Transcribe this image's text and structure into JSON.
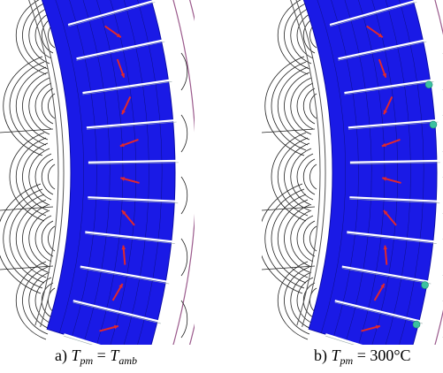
{
  "panels": [
    {
      "id": "a",
      "caption": {
        "prefix": "a)",
        "lhs_var": "T",
        "lhs_sub": "pm",
        "eq": "=",
        "rhs_var": "T",
        "rhs_sub": "amb",
        "rhs_text": ""
      },
      "hotspots": false
    },
    {
      "id": "b",
      "caption": {
        "prefix": "b)",
        "lhs_var": "T",
        "lhs_sub": "pm",
        "eq": "=",
        "rhs_var": "",
        "rhs_sub": "",
        "rhs_text": "300°C"
      },
      "hotspots": true
    }
  ],
  "colors": {
    "magnet": "#1a1ae6",
    "magnet_dark": "#0d0da8",
    "arrow": "#e0282e",
    "flux_line": "#222222",
    "boundary": "#9b5a8c",
    "slot": "#ffffff",
    "hotspot": "#3cc0a0"
  },
  "magnetization_angles_deg": [
    200,
    15,
    35,
    70,
    115,
    160,
    195,
    230,
    265,
    300,
    345
  ]
}
